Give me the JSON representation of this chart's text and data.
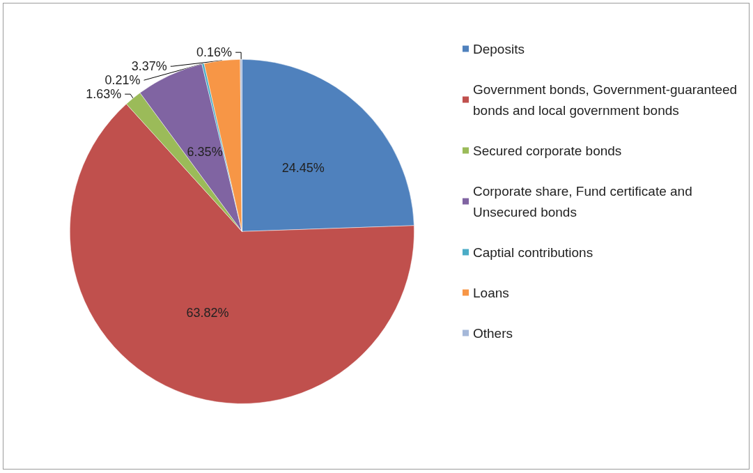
{
  "chart_data": {
    "type": "pie",
    "categories": [
      "Deposits",
      "Government bonds, Government-guaranteed bonds and local government bonds",
      "Secured corporate bonds",
      "Corporate share, Fund certificate and Unsecured bonds",
      "Captial contributions",
      "Loans",
      "Others"
    ],
    "values": [
      24.45,
      63.82,
      1.63,
      6.35,
      0.21,
      3.37,
      0.16
    ],
    "value_labels": [
      "24.45%",
      "63.82%",
      "1.63%",
      "6.35%",
      "0.21%",
      "3.37%",
      "0.16%"
    ],
    "colors": [
      "#4f81bd",
      "#c0504d",
      "#9bbb59",
      "#8064a2",
      "#4bacc6",
      "#f79646",
      "#a5b8d9"
    ],
    "legend": "right"
  }
}
